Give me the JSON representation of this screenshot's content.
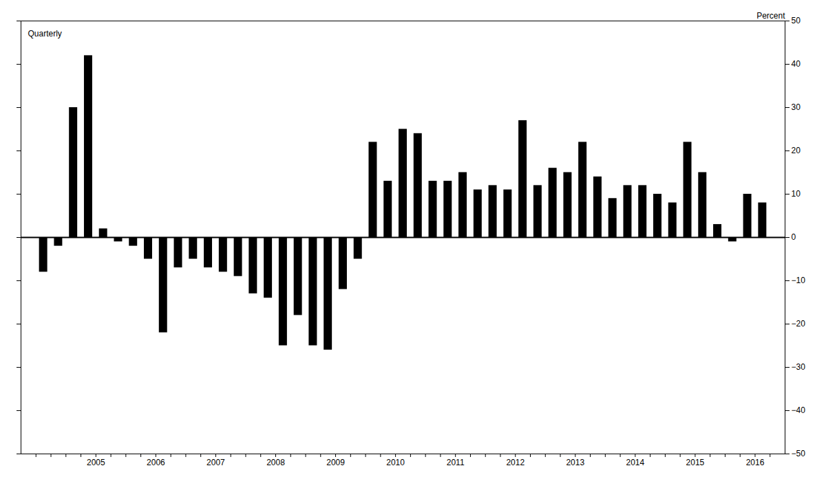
{
  "chart_data": {
    "type": "bar",
    "categories": [
      null,
      null,
      null,
      "2005",
      null,
      null,
      null,
      "2006",
      null,
      null,
      null,
      "2007",
      null,
      null,
      null,
      "2008",
      null,
      null,
      null,
      "2009",
      null,
      null,
      null,
      "2010",
      null,
      null,
      null,
      "2011",
      null,
      null,
      null,
      "2012",
      null,
      null,
      null,
      "2013",
      null,
      null,
      null,
      "2014",
      null,
      null,
      null,
      "2015",
      null,
      null,
      null,
      "2016",
      null
    ],
    "values": [
      -8,
      -2,
      30,
      42,
      2,
      -1,
      -2,
      -5,
      -22,
      -7,
      -5,
      -7,
      -8,
      -9,
      -13,
      -14,
      -25,
      -18,
      -25,
      -26,
      -12,
      -5,
      22,
      13,
      25,
      24,
      13,
      13,
      15,
      11,
      12,
      11,
      27,
      12,
      16,
      15,
      22,
      14,
      9,
      12,
      12,
      10,
      8,
      22,
      15,
      3,
      -1,
      10,
      8
    ],
    "color": "#000000",
    "ylim": [
      -50,
      50
    ],
    "yticks": [
      -50,
      -40,
      -30,
      -20,
      -10,
      0,
      10,
      20,
      30,
      40,
      50
    ],
    "ylabel": "Percent",
    "annotations": [
      "Quarterly"
    ],
    "grid": false
  }
}
